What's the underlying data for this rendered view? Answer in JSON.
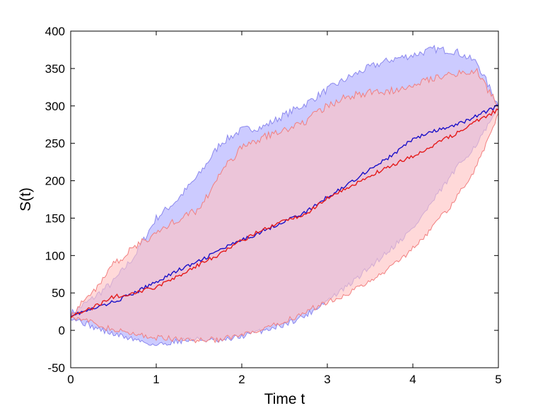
{
  "chart_data": {
    "type": "area",
    "title": "",
    "xlabel": "Time t",
    "ylabel": "S(t)",
    "xlim": [
      0,
      5
    ],
    "ylim": [
      -50,
      400
    ],
    "xticks": [
      0,
      1,
      2,
      3,
      4,
      5
    ],
    "yticks": [
      -50,
      0,
      50,
      100,
      150,
      200,
      250,
      300,
      350,
      400
    ],
    "grid": false,
    "legend": "none",
    "colors": {
      "blue_line": "#1a10c8",
      "blue_band_fill": "#c9c8ff",
      "blue_band_edge": "#8b88ee",
      "red_line": "#e41a1a",
      "red_band_fill": "#ffc2c2",
      "red_band_edge": "#f27f7f",
      "overlap_fill": "#d8aed6"
    },
    "series": [
      {
        "color_key": "blue",
        "t": [
          0,
          0.25,
          0.5,
          0.75,
          1.0,
          1.25,
          1.5,
          1.75,
          2.0,
          2.25,
          2.5,
          2.75,
          3.0,
          3.25,
          3.5,
          3.75,
          4.0,
          4.25,
          4.5,
          4.75,
          5.0
        ],
        "mean": [
          20,
          28,
          38,
          50,
          65,
          80,
          92,
          108,
          120,
          133,
          146,
          158,
          178,
          196,
          216,
          233,
          256,
          266,
          274,
          287,
          300
        ],
        "upper": [
          22,
          42,
          65,
          100,
          150,
          175,
          208,
          250,
          268,
          272,
          288,
          303,
          322,
          338,
          352,
          362,
          368,
          376,
          373,
          358,
          300
        ],
        "lower": [
          18,
          5,
          -5,
          -12,
          -20,
          -14,
          -12,
          -15,
          -8,
          0,
          8,
          20,
          40,
          60,
          85,
          110,
          136,
          175,
          215,
          250,
          295
        ]
      },
      {
        "color_key": "red",
        "t": [
          0,
          0.25,
          0.5,
          0.75,
          1.0,
          1.25,
          1.5,
          1.75,
          2.0,
          2.25,
          2.5,
          2.75,
          3.0,
          3.25,
          3.5,
          3.75,
          4.0,
          4.25,
          4.5,
          4.75,
          5.0
        ],
        "mean": [
          20,
          30,
          45,
          50,
          58,
          72,
          88,
          102,
          120,
          135,
          146,
          155,
          177,
          190,
          207,
          220,
          233,
          248,
          263,
          280,
          295
        ],
        "upper": [
          20,
          50,
          88,
          112,
          130,
          148,
          162,
          210,
          245,
          258,
          268,
          280,
          300,
          313,
          318,
          320,
          330,
          338,
          344,
          345,
          300
        ],
        "lower": [
          20,
          10,
          0,
          -5,
          -10,
          -12,
          -13,
          -12,
          -7,
          0,
          12,
          25,
          38,
          50,
          65,
          85,
          110,
          140,
          175,
          220,
          290
        ]
      }
    ]
  }
}
